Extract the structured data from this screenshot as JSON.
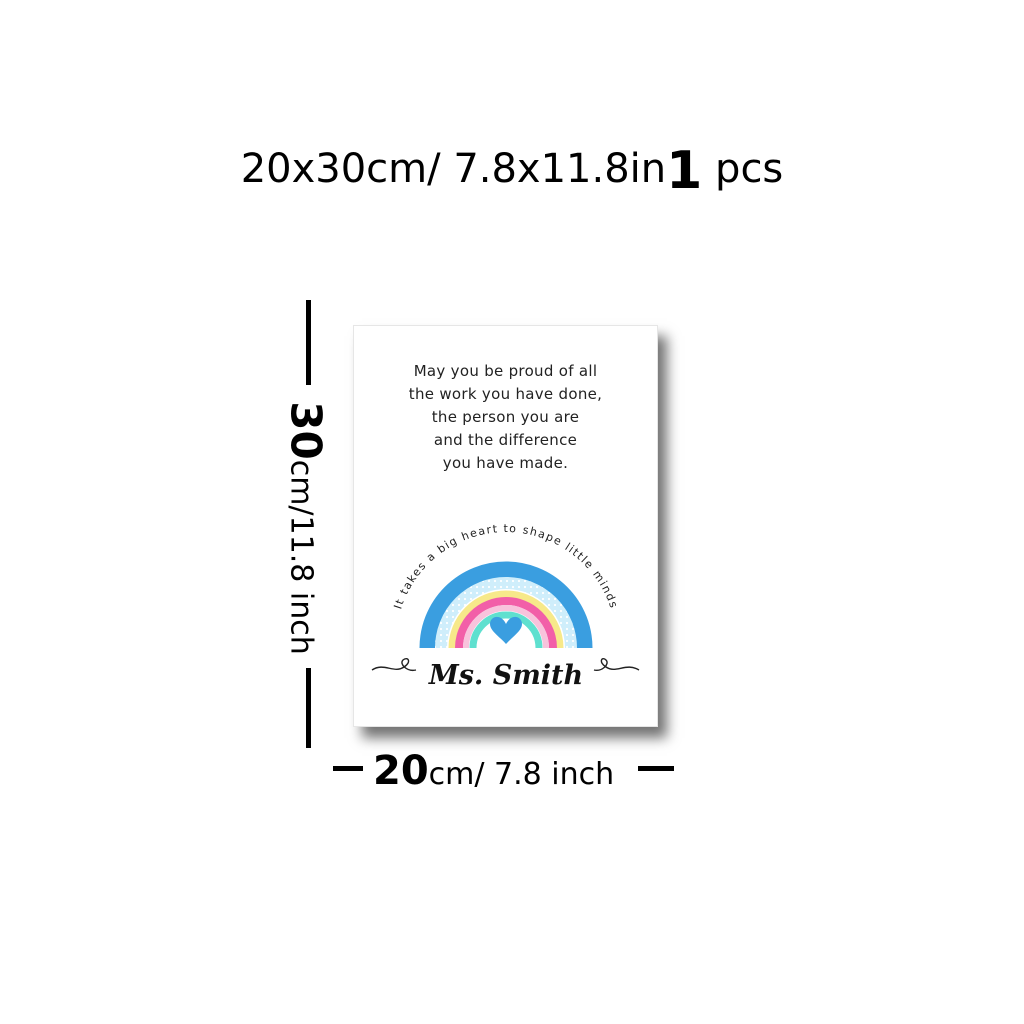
{
  "heading": {
    "size_text": "20x30cm/ 7.8x11.8in",
    "quantity": "1",
    "unit": "pcs"
  },
  "height_dim": {
    "number": "30",
    "unit": "cm/11.8 inch"
  },
  "width_dim": {
    "number": "20",
    "unit": "cm/ 7.8 inch"
  },
  "card": {
    "poem": [
      "May you be proud of all",
      "the work you have done,",
      "the person you are",
      "and the difference",
      "you have made."
    ],
    "arc_text": "It takes a big heart to shape little minds",
    "name": "Ms. Smith"
  },
  "colors": {
    "rainbow_outer": "#3a9ee0",
    "rainbow_light_blue": "#cfeefb",
    "rainbow_yellow": "#f7e98a",
    "rainbow_pink": "#f25fa8",
    "rainbow_light_pink": "#f8c3dc",
    "rainbow_teal": "#5fe0cf",
    "heart": "#3a9ee0"
  }
}
